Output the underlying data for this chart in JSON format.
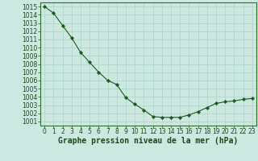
{
  "x": [
    0,
    1,
    2,
    3,
    4,
    5,
    6,
    7,
    8,
    9,
    10,
    11,
    12,
    13,
    14,
    15,
    16,
    17,
    18,
    19,
    20,
    21,
    22,
    23
  ],
  "y": [
    1015.0,
    1014.2,
    1012.7,
    1011.2,
    1009.4,
    1008.2,
    1007.0,
    1006.0,
    1005.5,
    1003.9,
    1003.1,
    1002.4,
    1001.6,
    1001.5,
    1001.5,
    1001.5,
    1001.8,
    1002.2,
    1002.7,
    1003.2,
    1003.4,
    1003.5,
    1003.7,
    1003.8
  ],
  "line_color": "#1a5c1a",
  "marker": "D",
  "marker_size": 2.2,
  "bg_color": "#cce8e0",
  "grid_color": "#b0d8cc",
  "xlabel": "Graphe pression niveau de la mer (hPa)",
  "xlabel_fontsize": 7.0,
  "tick_fontsize": 5.5,
  "ylim": [
    1000.5,
    1015.5
  ],
  "xlim": [
    -0.5,
    23.5
  ],
  "yticks": [
    1001,
    1002,
    1003,
    1004,
    1005,
    1006,
    1007,
    1008,
    1009,
    1010,
    1011,
    1012,
    1013,
    1014,
    1015
  ],
  "xticks": [
    0,
    1,
    2,
    3,
    4,
    5,
    6,
    7,
    8,
    9,
    10,
    11,
    12,
    13,
    14,
    15,
    16,
    17,
    18,
    19,
    20,
    21,
    22,
    23
  ],
  "spine_color": "#2d6e2d",
  "tick_color": "#1a4a1a"
}
